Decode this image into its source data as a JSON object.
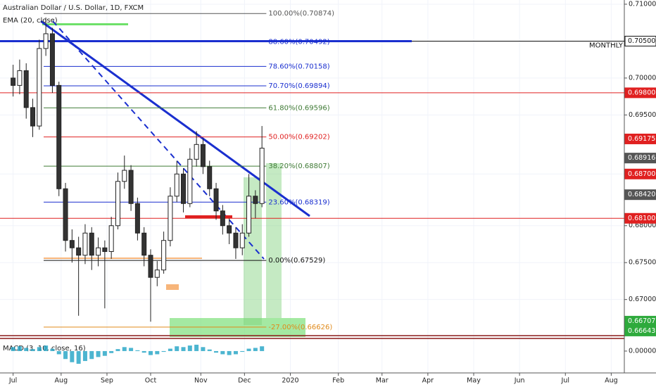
{
  "chart_data": {
    "type": "candlestick",
    "title": "Australian Dollar / U.S. Dollar, 1D, FXCM",
    "indicator": "EMA (20, close)",
    "up_color": "#ffffff",
    "down_color": "#333333",
    "x": [
      0,
      3,
      6,
      9,
      12,
      15,
      18,
      21,
      24,
      27,
      30,
      33,
      36,
      39,
      42,
      45,
      48,
      51,
      54,
      57,
      60,
      63,
      66,
      69,
      72,
      75,
      78,
      81,
      84,
      87,
      90,
      93,
      96,
      99,
      102,
      105,
      108,
      111,
      114
    ],
    "open": [
      0.7,
      0.699,
      0.701,
      0.696,
      0.6935,
      0.704,
      0.706,
      0.699,
      0.685,
      0.678,
      0.677,
      0.676,
      0.679,
      0.676,
      0.677,
      0.6765,
      0.68,
      0.686,
      0.6875,
      0.683,
      0.679,
      0.676,
      0.673,
      0.674,
      0.678,
      0.684,
      0.687,
      0.683,
      0.689,
      0.691,
      0.688,
      0.685,
      0.682,
      0.68,
      0.679,
      0.677,
      0.679,
      0.684,
      0.683
    ],
    "high": [
      0.7018,
      0.7025,
      0.702,
      0.6972,
      0.7052,
      0.7082,
      0.7068,
      0.6995,
      0.6858,
      0.6795,
      0.6785,
      0.6802,
      0.6798,
      0.6784,
      0.678,
      0.6812,
      0.6872,
      0.6895,
      0.6882,
      0.6838,
      0.6798,
      0.6768,
      0.6752,
      0.6792,
      0.6852,
      0.6888,
      0.6878,
      0.6905,
      0.6928,
      0.6918,
      0.6888,
      0.6858,
      0.6828,
      0.681,
      0.6798,
      0.6802,
      0.687,
      0.6848,
      0.6935
    ],
    "low": [
      0.6975,
      0.6978,
      0.6945,
      0.692,
      0.693,
      0.703,
      0.698,
      0.684,
      0.6765,
      0.675,
      0.6678,
      0.6748,
      0.674,
      0.6745,
      0.6688,
      0.6755,
      0.6795,
      0.685,
      0.682,
      0.678,
      0.6745,
      0.667,
      0.6718,
      0.6735,
      0.6772,
      0.6832,
      0.6818,
      0.6825,
      0.688,
      0.687,
      0.684,
      0.6808,
      0.6788,
      0.6775,
      0.6755,
      0.676,
      0.6785,
      0.681,
      0.6825
    ],
    "close": [
      0.699,
      0.701,
      0.696,
      0.6935,
      0.704,
      0.706,
      0.699,
      0.685,
      0.678,
      0.677,
      0.676,
      0.679,
      0.676,
      0.677,
      0.6765,
      0.68,
      0.686,
      0.6875,
      0.683,
      0.679,
      0.676,
      0.673,
      0.674,
      0.678,
      0.684,
      0.687,
      0.683,
      0.689,
      0.691,
      0.688,
      0.685,
      0.682,
      0.68,
      0.679,
      0.677,
      0.679,
      0.684,
      0.683,
      0.6905
    ],
    "xlim": [
      -6,
      280
    ],
    "xticks": [
      {
        "value": 0,
        "label": "Jul"
      },
      {
        "value": 22,
        "label": "Aug"
      },
      {
        "value": 43,
        "label": "Sep"
      },
      {
        "value": 63,
        "label": "Oct"
      },
      {
        "value": 86,
        "label": "Nov"
      },
      {
        "value": 106,
        "label": "Dec"
      },
      {
        "value": 127,
        "label": "2020"
      },
      {
        "value": 149,
        "label": "Feb"
      },
      {
        "value": 169,
        "label": "Mar"
      },
      {
        "value": 190,
        "label": "Apr"
      },
      {
        "value": 211,
        "label": "May"
      },
      {
        "value": 232,
        "label": "Jun"
      },
      {
        "value": 253,
        "label": "Jul"
      },
      {
        "value": 274,
        "label": "Aug"
      }
    ],
    "ylim": [
      0.66282,
      0.71057
    ],
    "yticks": [
      {
        "value": 0.71,
        "label": "0.71000"
      },
      {
        "value": 0.7,
        "label": "0.70000"
      },
      {
        "value": 0.695,
        "label": "0.69500"
      },
      {
        "value": 0.687,
        "label": "0.68700"
      },
      {
        "value": 0.68,
        "label": "0.68000"
      },
      {
        "value": 0.675,
        "label": "0.67500"
      },
      {
        "value": 0.67,
        "label": "0.67000"
      }
    ],
    "price_labels": [
      {
        "value": 0.705,
        "label": "0.70500",
        "color": "#ffffff"
      },
      {
        "value": 0.698,
        "label": "0.69800",
        "color": "#e02020"
      },
      {
        "value": 0.69175,
        "label": "0.69175",
        "color": "#e02020"
      },
      {
        "value": 0.68916,
        "label": "0.68916",
        "color": "#555555"
      },
      {
        "value": 0.687,
        "label": "0.68700",
        "color": "#e02020"
      },
      {
        "value": 0.6842,
        "label": "0.68420",
        "color": "#555555"
      },
      {
        "value": 0.681,
        "label": "0.68100",
        "color": "#e02020"
      },
      {
        "value": 0.66707,
        "label": "0.66707",
        "color": "#2eaa3c"
      },
      {
        "value": 0.66643,
        "label": "0.66643",
        "color": "#2eaa3c"
      }
    ],
    "levels": [
      {
        "value": 0.705,
        "color": "#1a2fcf",
        "label": "MONTHLY"
      },
      {
        "value": 0.698,
        "color": "#e02020"
      },
      {
        "value": 0.681,
        "color": "#e02020"
      }
    ],
    "fib_range": [
      14,
      116
    ],
    "fib": [
      {
        "value": 0.70874,
        "label": "100.00%(0.70874)",
        "color": "#555555"
      },
      {
        "value": 0.70492,
        "label": "88.60%(0.70492)",
        "color": "#1a2fcf"
      },
      {
        "value": 0.70158,
        "label": "78.60%(0.70158)",
        "color": "#1a2fcf"
      },
      {
        "value": 0.69894,
        "label": "70.70%(0.69894)",
        "color": "#1a2fcf"
      },
      {
        "value": 0.69596,
        "label": "61.80%(0.69596)",
        "color": "#3f7a35"
      },
      {
        "value": 0.69202,
        "label": "50.00%(0.69202)",
        "color": "#e02020"
      },
      {
        "value": 0.68807,
        "label": "38.20%(0.68807)",
        "color": "#3f7a35"
      },
      {
        "value": 0.68319,
        "label": "23.60%(0.68319)",
        "color": "#1a2fcf"
      },
      {
        "value": 0.67529,
        "label": "0.00%(0.67529)",
        "color": "#111111"
      },
      {
        "value": 0.66626,
        "label": "-27.00%(0.66626)",
        "color": "#e08a1a"
      }
    ],
    "macd": {
      "title": "MACD (3, 10, close, 16)",
      "values": [
        0.001,
        0.0012,
        0.0008,
        0.0005,
        0.001,
        0.0014,
        0.0006,
        -0.0008,
        -0.002,
        -0.0028,
        -0.0032,
        -0.0025,
        -0.002,
        -0.0015,
        -0.0012,
        -0.0005,
        0.0005,
        0.001,
        0.0008,
        0.0002,
        -0.0004,
        -0.001,
        -0.0008,
        -0.0002,
        0.0006,
        0.0012,
        0.001,
        0.0014,
        0.0016,
        0.001,
        0.0004,
        -0.0004,
        -0.0008,
        -0.001,
        -0.0008,
        -0.0002,
        0.0006,
        0.0008,
        0.0012
      ],
      "color": "#1fa3c4",
      "ylim": [
        -0.0055,
        0.003
      ],
      "yticks": [
        {
          "value": 0,
          "label": "0.00000"
        }
      ]
    }
  }
}
